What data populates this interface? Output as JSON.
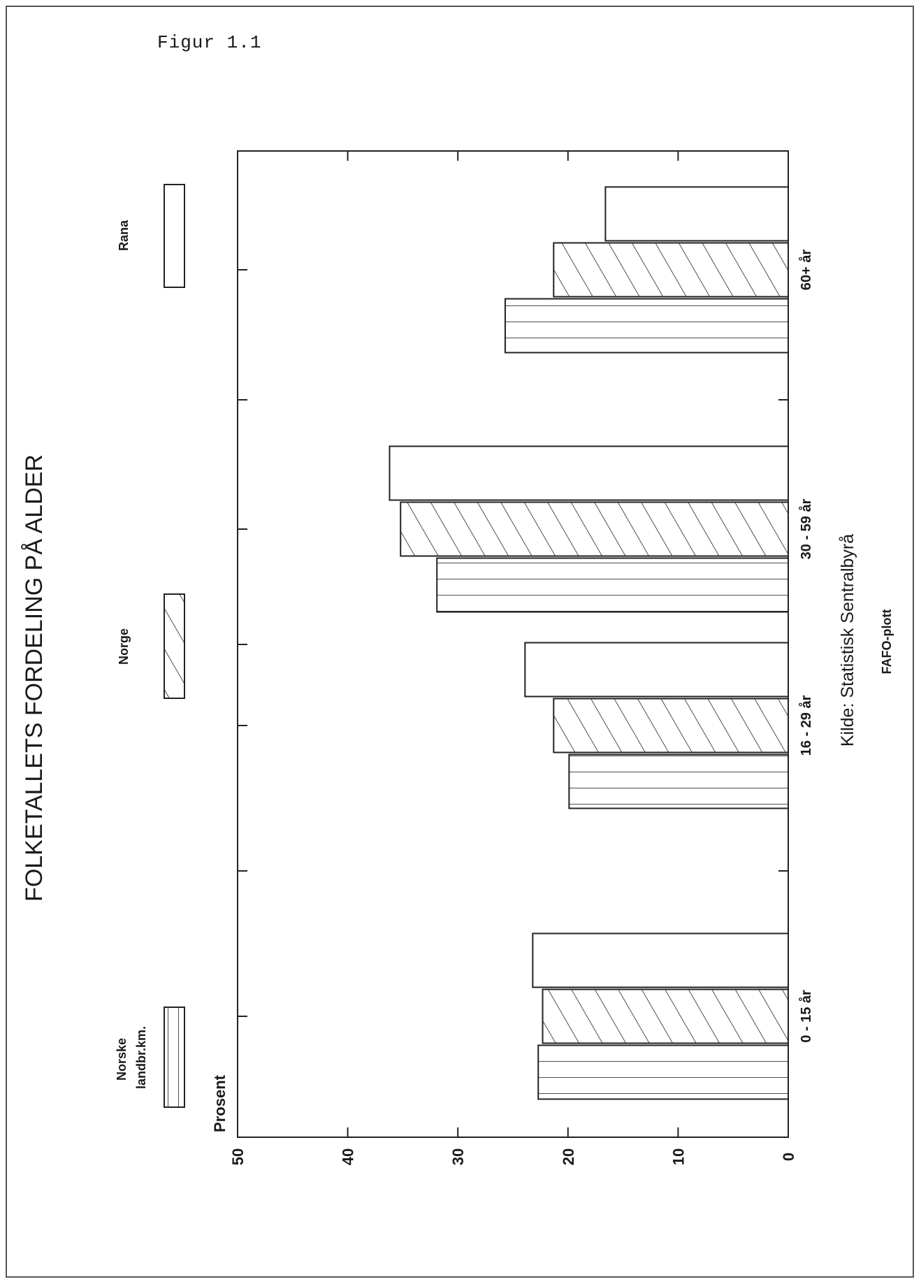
{
  "figure_label": "Figur 1.1",
  "source": "Kilde: Statistisk Sentralbyrå",
  "credit": "FAFO-plott",
  "chart_data": {
    "type": "bar",
    "title": "FOLKETALLETS FORDELING PÅ ALDER",
    "ylabel": "Prosent",
    "xlabel": "",
    "categories": [
      "0 - 15 år",
      "16 - 29 år",
      "30 - 59 år",
      "60+ år"
    ],
    "series": [
      {
        "name": "Norske landbr.km.",
        "pattern": "horizontal-lines",
        "values": [
          22.7,
          19.9,
          31.9,
          25.7
        ]
      },
      {
        "name": "Norge",
        "pattern": "diagonal-hatch",
        "values": [
          22.3,
          21.3,
          35.2,
          21.3
        ]
      },
      {
        "name": "Rana",
        "pattern": "blank",
        "values": [
          23.2,
          23.9,
          36.2,
          16.6
        ]
      }
    ],
    "ylim": [
      0,
      50
    ],
    "yticks": [
      "0",
      "10",
      "20",
      "30",
      "40",
      "50"
    ],
    "orientation": "rotated-90",
    "grid": false,
    "legend_position": "top"
  }
}
